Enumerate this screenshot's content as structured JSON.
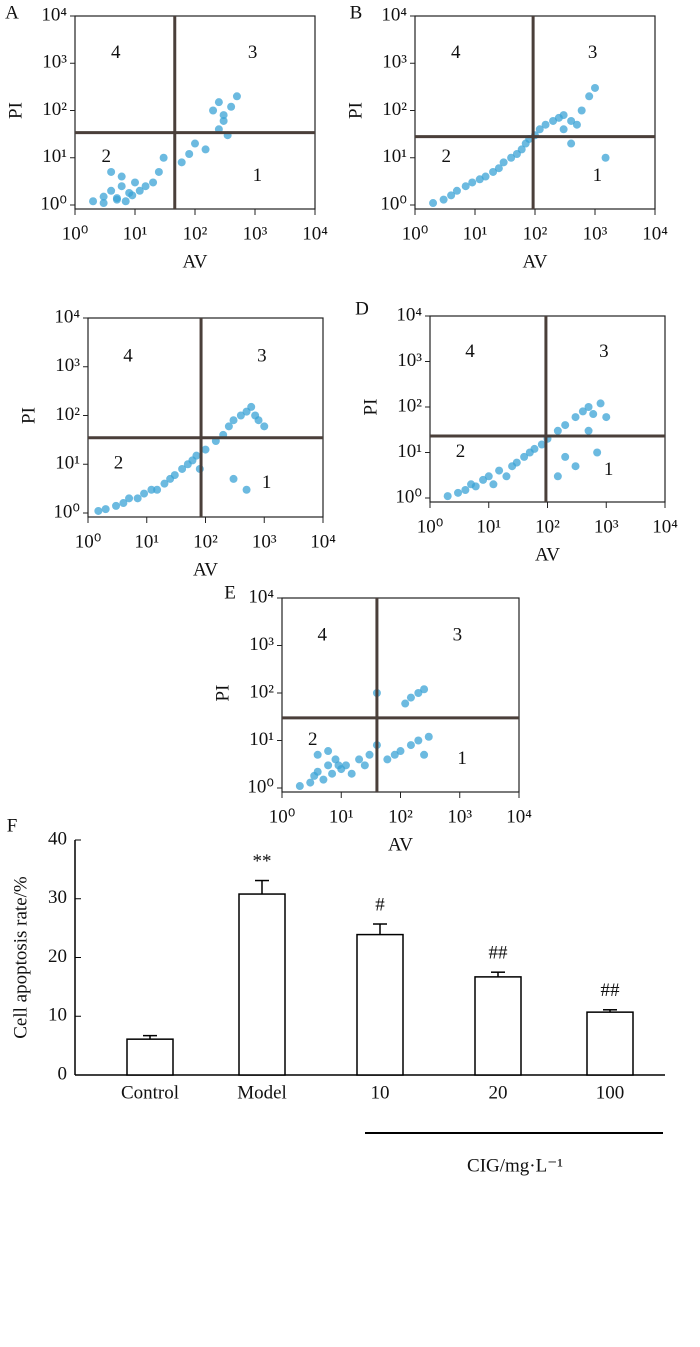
{
  "chart_data": [
    {
      "type": "scatter",
      "panel": "A",
      "xlabel": "AV",
      "ylabel": "PI",
      "log_scale": true,
      "color": "#3ba3d6",
      "xlim": [
        1,
        10000
      ],
      "ylim": [
        1,
        10000
      ],
      "xticks": [
        {
          "value": 1,
          "label": "10⁰"
        },
        {
          "value": 10,
          "label": "10¹"
        },
        {
          "value": 100,
          "label": "10²"
        },
        {
          "value": 1000,
          "label": "10³"
        },
        {
          "value": 10000,
          "label": "10⁴"
        }
      ],
      "yticks": [
        {
          "value": 1,
          "label": "10⁰"
        },
        {
          "value": 10,
          "label": "10¹"
        },
        {
          "value": 100,
          "label": "10²"
        },
        {
          "value": 1000,
          "label": "10³"
        },
        {
          "value": 10000,
          "label": "10⁴"
        }
      ],
      "gate_x": 46,
      "gate_y": 34,
      "quadrant_labels": [
        "1",
        "2",
        "3",
        "4"
      ],
      "x": [
        2,
        3,
        4,
        5,
        6,
        8,
        10,
        12,
        3,
        5,
        7,
        9,
        15,
        20,
        4,
        6,
        25,
        30,
        60,
        80,
        100,
        150,
        200,
        250,
        300,
        400,
        500,
        300,
        250,
        350
      ],
      "y": [
        1.2,
        1.5,
        2,
        1.3,
        2.5,
        1.8,
        3,
        2,
        1.1,
        1.4,
        1.2,
        1.6,
        2.5,
        3,
        5,
        4,
        5,
        10,
        8,
        12,
        20,
        15,
        100,
        150,
        80,
        120,
        200,
        60,
        40,
        30
      ]
    },
    {
      "type": "scatter",
      "panel": "B",
      "xlabel": "AV",
      "ylabel": "PI",
      "log_scale": true,
      "color": "#3ba3d6",
      "xlim": [
        1,
        10000
      ],
      "ylim": [
        1,
        10000
      ],
      "xticks": [
        {
          "value": 1,
          "label": "10⁰"
        },
        {
          "value": 10,
          "label": "10¹"
        },
        {
          "value": 100,
          "label": "10²"
        },
        {
          "value": 1000,
          "label": "10³"
        },
        {
          "value": 10000,
          "label": "10⁴"
        }
      ],
      "yticks": [
        {
          "value": 1,
          "label": "10⁰"
        },
        {
          "value": 10,
          "label": "10¹"
        },
        {
          "value": 100,
          "label": "10²"
        },
        {
          "value": 1000,
          "label": "10³"
        },
        {
          "value": 10000,
          "label": "10⁴"
        }
      ],
      "gate_x": 93,
      "gate_y": 28,
      "quadrant_labels": [
        "1",
        "2",
        "3",
        "4"
      ],
      "x": [
        2,
        3,
        4,
        5,
        7,
        9,
        12,
        15,
        20,
        25,
        30,
        40,
        50,
        60,
        70,
        80,
        100,
        120,
        150,
        200,
        250,
        300,
        400,
        500,
        600,
        800,
        1000,
        300,
        400,
        1500
      ],
      "y": [
        1.1,
        1.3,
        1.6,
        2,
        2.5,
        3,
        3.5,
        4,
        5,
        6,
        8,
        10,
        12,
        15,
        20,
        25,
        30,
        40,
        50,
        60,
        70,
        80,
        60,
        50,
        100,
        200,
        300,
        40,
        20,
        10
      ]
    },
    {
      "type": "scatter",
      "xlabel": "AV",
      "ylabel": "PI",
      "log_scale": true,
      "color": "#3ba3d6",
      "xlim": [
        1,
        10000
      ],
      "ylim": [
        1,
        10000
      ],
      "xticks": [
        {
          "value": 1,
          "label": "10⁰"
        },
        {
          "value": 10,
          "label": "10¹"
        },
        {
          "value": 100,
          "label": "10²"
        },
        {
          "value": 1000,
          "label": "10³"
        },
        {
          "value": 10000,
          "label": "10⁴"
        }
      ],
      "yticks": [
        {
          "value": 1,
          "label": "10⁰"
        },
        {
          "value": 10,
          "label": "10¹"
        },
        {
          "value": 100,
          "label": "10²"
        },
        {
          "value": 1000,
          "label": "10³"
        },
        {
          "value": 10000,
          "label": "10⁴"
        }
      ],
      "gate_x": 84,
      "gate_y": 35,
      "quadrant_labels": [
        "1",
        "2",
        "3",
        "4"
      ],
      "x": [
        1.5,
        2,
        3,
        4,
        5,
        7,
        9,
        12,
        15,
        20,
        25,
        30,
        40,
        50,
        60,
        70,
        80,
        100,
        150,
        200,
        250,
        300,
        400,
        500,
        600,
        700,
        800,
        1000,
        300,
        500
      ],
      "y": [
        1.1,
        1.2,
        1.4,
        1.6,
        2,
        2,
        2.5,
        3,
        3,
        4,
        5,
        6,
        8,
        10,
        12,
        15,
        8,
        20,
        30,
        40,
        60,
        80,
        100,
        120,
        150,
        100,
        80,
        60,
        5,
        3
      ]
    },
    {
      "type": "scatter",
      "panel": "D",
      "xlabel": "AV",
      "ylabel": "PI",
      "log_scale": true,
      "color": "#3ba3d6",
      "xlim": [
        1,
        10000
      ],
      "ylim": [
        1,
        10000
      ],
      "xticks": [
        {
          "value": 1,
          "label": "10⁰"
        },
        {
          "value": 10,
          "label": "10¹"
        },
        {
          "value": 100,
          "label": "10²"
        },
        {
          "value": 1000,
          "label": "10³"
        },
        {
          "value": 10000,
          "label": "10⁴"
        }
      ],
      "yticks": [
        {
          "value": 1,
          "label": "10⁰"
        },
        {
          "value": 10,
          "label": "10¹"
        },
        {
          "value": 100,
          "label": "10²"
        },
        {
          "value": 1000,
          "label": "10³"
        },
        {
          "value": 10000,
          "label": "10⁴"
        }
      ],
      "gate_x": 94,
      "gate_y": 23,
      "quadrant_labels": [
        "1",
        "2",
        "3",
        "4"
      ],
      "x": [
        2,
        3,
        4,
        5,
        6,
        8,
        10,
        12,
        15,
        20,
        25,
        30,
        40,
        50,
        60,
        80,
        100,
        150,
        200,
        300,
        400,
        500,
        600,
        800,
        1000,
        200,
        300,
        150,
        500,
        700
      ],
      "y": [
        1.1,
        1.3,
        1.5,
        2,
        1.8,
        2.5,
        3,
        2,
        4,
        3,
        5,
        6,
        8,
        10,
        12,
        15,
        20,
        30,
        40,
        60,
        80,
        100,
        70,
        120,
        60,
        8,
        5,
        3,
        30,
        10
      ]
    },
    {
      "type": "scatter",
      "panel": "E",
      "xlabel": "AV",
      "ylabel": "PI",
      "log_scale": true,
      "color": "#3ba3d6",
      "xlim": [
        1,
        10000
      ],
      "ylim": [
        1,
        10000
      ],
      "xticks": [
        {
          "value": 1,
          "label": "10⁰"
        },
        {
          "value": 10,
          "label": "10¹"
        },
        {
          "value": 100,
          "label": "10²"
        },
        {
          "value": 1000,
          "label": "10³"
        },
        {
          "value": 10000,
          "label": "10⁴"
        }
      ],
      "yticks": [
        {
          "value": 1,
          "label": "10⁰"
        },
        {
          "value": 10,
          "label": "10¹"
        },
        {
          "value": 100,
          "label": "10²"
        },
        {
          "value": 1000,
          "label": "10³"
        },
        {
          "value": 10000,
          "label": "10⁴"
        }
      ],
      "gate_x": 40,
      "gate_y": 30,
      "quadrant_labels": [
        "1",
        "2",
        "3",
        "4"
      ],
      "x": [
        2,
        3,
        3.5,
        4,
        5,
        6,
        7,
        8,
        10,
        12,
        15,
        4,
        6,
        9,
        20,
        25,
        30,
        40,
        60,
        80,
        100,
        150,
        200,
        250,
        300,
        150,
        200,
        250,
        40,
        120
      ],
      "y": [
        1.1,
        1.3,
        1.8,
        2.2,
        1.5,
        3,
        2,
        4,
        2.5,
        3,
        2,
        5,
        6,
        3,
        4,
        3,
        5,
        100,
        4,
        5,
        6,
        8,
        10,
        5,
        12,
        80,
        100,
        120,
        8,
        60
      ]
    },
    {
      "type": "bar",
      "panel": "F",
      "ylabel": "Cell apoptosis rate/%",
      "xlabel": "CIG/mg·L⁻¹",
      "color": "#000000",
      "categories": [
        "Control",
        "Model",
        "10",
        "20",
        "100"
      ],
      "values": [
        6.1,
        30.8,
        23.9,
        16.7,
        10.7
      ],
      "errors": [
        0.6,
        2.3,
        1.8,
        0.8,
        0.4
      ],
      "significance": [
        null,
        "**",
        "#",
        "##",
        "##"
      ],
      "ylim": [
        0,
        40
      ],
      "yticks": [
        0,
        10,
        20,
        30,
        40
      ]
    }
  ]
}
